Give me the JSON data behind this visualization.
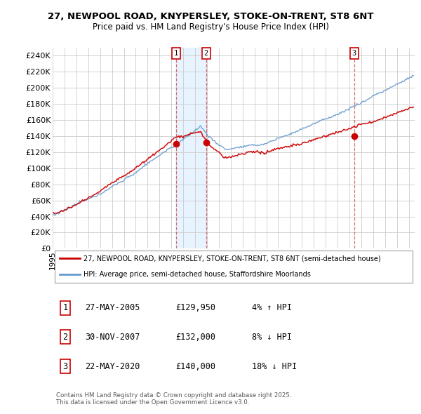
{
  "title_line1": "27, NEWPOOL ROAD, KNYPERSLEY, STOKE-ON-TRENT, ST8 6NT",
  "title_line2": "Price paid vs. HM Land Registry's House Price Index (HPI)",
  "ylabel_ticks": [
    "£0",
    "£20K",
    "£40K",
    "£60K",
    "£80K",
    "£100K",
    "£120K",
    "£140K",
    "£160K",
    "£180K",
    "£200K",
    "£220K",
    "£240K"
  ],
  "ytick_values": [
    0,
    20000,
    40000,
    60000,
    80000,
    100000,
    120000,
    140000,
    160000,
    180000,
    200000,
    220000,
    240000
  ],
  "ylim": [
    0,
    250000
  ],
  "xlim_start": 1995.0,
  "xlim_end": 2025.5,
  "sale1_x": 2005.42,
  "sale1_y": 129950,
  "sale2_x": 2007.92,
  "sale2_y": 132000,
  "sale3_x": 2020.4,
  "sale3_y": 140000,
  "property_color": "#cc0000",
  "hpi_color": "#6699cc",
  "shade_color": "#ddeeff",
  "legend_property": "27, NEWPOOL ROAD, KNYPERSLEY, STOKE-ON-TRENT, ST8 6NT (semi-detached house)",
  "legend_hpi": "HPI: Average price, semi-detached house, Staffordshire Moorlands",
  "footer": "Contains HM Land Registry data © Crown copyright and database right 2025.\nThis data is licensed under the Open Government Licence v3.0.",
  "background_color": "#ffffff",
  "grid_color": "#cccccc",
  "chart_bg": "#ffffff"
}
